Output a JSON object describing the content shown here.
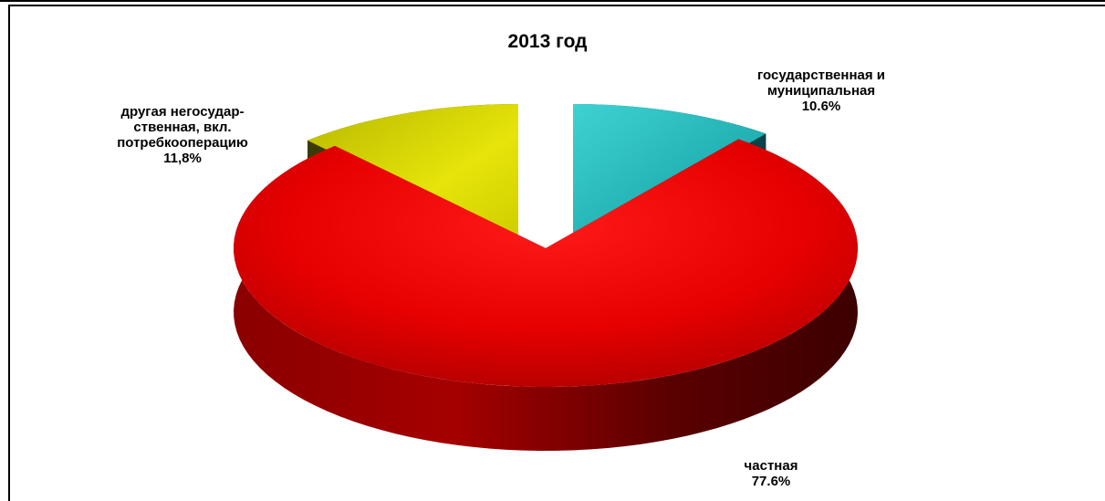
{
  "chart_data": {
    "type": "pie",
    "variant": "3d-exploded",
    "title": "2013 год",
    "slices": [
      {
        "name": "государственная и муниципальная",
        "label_lines": [
          "государственная и",
          "муниципальная"
        ],
        "value": 10.6,
        "value_label": "10.6%",
        "color": "#1fb8b8",
        "color_dark": "#0e5e66"
      },
      {
        "name": "частная",
        "label_lines": [
          "частная"
        ],
        "value": 77.6,
        "value_label": "77.6%",
        "color": "#e60000",
        "color_dark": "#5c0000"
      },
      {
        "name": "другая негосударственная, вкл. потребкооперацию",
        "label_lines": [
          "другая негосудар-",
          "ственная, вкл.",
          "потребкооперацию"
        ],
        "value": 11.8,
        "value_label": "11,8%",
        "color": "#d8d600",
        "color_dark": "#4a4a08"
      }
    ]
  }
}
